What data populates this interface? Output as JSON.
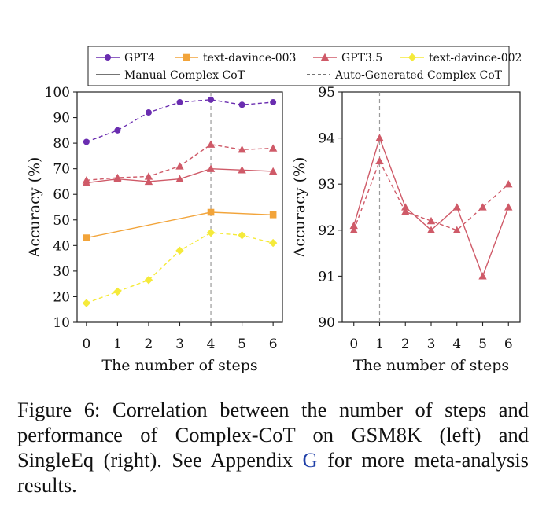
{
  "legend": {
    "items": [
      {
        "label": "GPT4",
        "color": "#6a2db0",
        "marker": "circle"
      },
      {
        "label": "text-davince-003",
        "color": "#f2a43a",
        "marker": "square"
      },
      {
        "label": "GPT3.5",
        "color": "#cf5a68",
        "marker": "triangle"
      },
      {
        "label": "text-davince-002",
        "color": "#f5ea3a",
        "marker": "diamond"
      }
    ],
    "styles": [
      {
        "label": "Manual Complex CoT",
        "dash": "solid"
      },
      {
        "label": "Auto-Generated Complex CoT",
        "dash": "dashed"
      }
    ]
  },
  "chart_data": [
    {
      "type": "line",
      "xlabel": "The number of steps",
      "ylabel": "Accuracy (%)",
      "x": [
        0,
        1,
        2,
        3,
        4,
        5,
        6
      ],
      "xlim": [
        -0.3,
        6.3
      ],
      "ylim": [
        10,
        100
      ],
      "yticks": [
        10,
        20,
        30,
        40,
        50,
        60,
        70,
        80,
        90,
        100
      ],
      "vline_x": 4,
      "series": [
        {
          "name": "GPT4",
          "style": "dashed",
          "color": "#6a2db0",
          "marker": "circle",
          "x": [
            0,
            1,
            2,
            3,
            4,
            5,
            6
          ],
          "values": [
            80.5,
            85,
            92,
            96,
            97,
            95,
            96
          ]
        },
        {
          "name": "GPT3.5",
          "style": "dashed",
          "color": "#cf5a68",
          "marker": "triangle",
          "x": [
            0,
            1,
            2,
            3,
            4,
            5,
            6
          ],
          "values": [
            65.5,
            66.5,
            67,
            71,
            79.5,
            77.5,
            78
          ]
        },
        {
          "name": "GPT3.5",
          "style": "solid",
          "color": "#cf5a68",
          "marker": "triangle",
          "x": [
            0,
            1,
            2,
            3,
            4,
            5,
            6
          ],
          "values": [
            64.5,
            66,
            65,
            66,
            70,
            69.5,
            69
          ]
        },
        {
          "name": "text-davince-003",
          "style": "solid",
          "color": "#f2a43a",
          "marker": "square",
          "x": [
            0,
            4,
            6
          ],
          "values": [
            43,
            53,
            52
          ]
        },
        {
          "name": "text-davince-002",
          "style": "dashed",
          "color": "#f5ea3a",
          "marker": "diamond",
          "x": [
            0,
            1,
            2,
            3,
            4,
            5,
            6
          ],
          "values": [
            17.5,
            22,
            26.5,
            38,
            45,
            44,
            41
          ]
        }
      ]
    },
    {
      "type": "line",
      "xlabel": "The number of steps",
      "ylabel": "Accuracy (%)",
      "x": [
        0,
        1,
        2,
        3,
        4,
        5,
        6
      ],
      "xlim": [
        -0.45,
        6.45
      ],
      "ylim": [
        90,
        95
      ],
      "yticks": [
        90,
        91,
        92,
        93,
        94,
        95
      ],
      "vline_x": 1,
      "series": [
        {
          "name": "GPT3.5",
          "style": "solid",
          "color": "#cf5a68",
          "marker": "triangle",
          "x": [
            0,
            1,
            2,
            3,
            4,
            5,
            6
          ],
          "values": [
            92.1,
            94.0,
            92.5,
            92.0,
            92.5,
            91.0,
            92.5
          ]
        },
        {
          "name": "GPT3.5",
          "style": "dashed",
          "color": "#cf5a68",
          "marker": "triangle",
          "x": [
            0,
            1,
            2,
            3,
            4,
            5,
            6
          ],
          "values": [
            92.0,
            93.5,
            92.4,
            92.2,
            92.0,
            92.5,
            93.0
          ]
        }
      ]
    }
  ],
  "caption": {
    "text_before": "Figure 6: Correlation between the number of steps and performance of Complex-CoT on GSM8K (left) and SingleEq (right). See Appendix ",
    "link": "G",
    "text_after": " for more meta-analysis results."
  }
}
